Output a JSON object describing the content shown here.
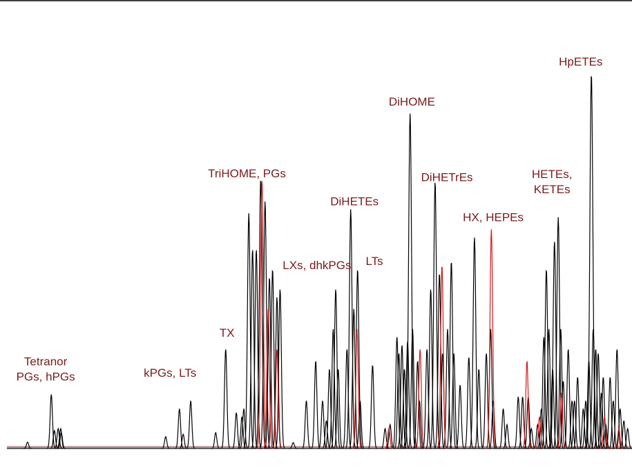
{
  "colors": {
    "label": "#7a1a1a",
    "trace_black": "#000000",
    "trace_red": "#d41a1a",
    "background": "#ffffff"
  },
  "chart_data": {
    "type": "line",
    "title": "",
    "xlabel": "",
    "ylabel": "",
    "xlim": [
      0,
      1000
    ],
    "ylim": [
      0,
      1
    ],
    "grid": false,
    "legend": "none",
    "annotations": [
      {
        "lines": [
          "Tetranor",
          "PGs, hPGs"
        ],
        "x": 62,
        "y": 0.17
      },
      {
        "lines": [
          "kPGs, LTs"
        ],
        "x": 261,
        "y": 0.18
      },
      {
        "lines": [
          "TX"
        ],
        "x": 352,
        "y": 0.28
      },
      {
        "lines": [
          "TriHOME, PGs"
        ],
        "x": 384,
        "y": 0.68
      },
      {
        "lines": [
          "LXs, dhkPGs"
        ],
        "x": 496,
        "y": 0.45
      },
      {
        "lines": [
          "LTs"
        ],
        "x": 588,
        "y": 0.46
      },
      {
        "lines": [
          "DiHETEs"
        ],
        "x": 556,
        "y": 0.61
      },
      {
        "lines": [
          "DiHOME"
        ],
        "x": 648,
        "y": 0.86
      },
      {
        "lines": [
          "DiHETrEs"
        ],
        "x": 704,
        "y": 0.67
      },
      {
        "lines": [
          "HX, HEPEs"
        ],
        "x": 778,
        "y": 0.57
      },
      {
        "lines": [
          "HETEs,",
          "KETEs"
        ],
        "x": 872,
        "y": 0.64
      },
      {
        "lines": [
          "HpETEs"
        ],
        "x": 918,
        "y": 0.96
      }
    ],
    "series": [
      {
        "color": "black",
        "peaks": [
          [
            33,
            0.016
          ],
          [
            71,
            0.136
          ],
          [
            76,
            0.045
          ],
          [
            82,
            0.05
          ],
          [
            86,
            0.05
          ],
          [
            87,
            0.04
          ],
          [
            254,
            0.03
          ],
          [
            276,
            0.1
          ],
          [
            282,
            0.036
          ],
          [
            294,
            0.12
          ],
          [
            334,
            0.04
          ],
          [
            350,
            0.25
          ],
          [
            367,
            0.09
          ],
          [
            376,
            0.08
          ],
          [
            379,
            0.1
          ],
          [
            387,
            0.59
          ],
          [
            393,
            0.5
          ],
          [
            399,
            0.5
          ],
          [
            406,
            0.675
          ],
          [
            413,
            0.62
          ],
          [
            420,
            0.43
          ],
          [
            425,
            0.45
          ],
          [
            432,
            0.38
          ],
          [
            437,
            0.4
          ],
          [
            458,
            0.015
          ],
          [
            479,
            0.12
          ],
          [
            494,
            0.22
          ],
          [
            505,
            0.12
          ],
          [
            511,
            0.07
          ],
          [
            516,
            0.2
          ],
          [
            522,
            0.3
          ],
          [
            526,
            0.4
          ],
          [
            530,
            0.2
          ],
          [
            544,
            0.25
          ],
          [
            550,
            0.6
          ],
          [
            555,
            0.35
          ],
          [
            561,
            0.45
          ],
          [
            565,
            0.12
          ],
          [
            585,
            0.21
          ],
          [
            605,
            0.05
          ],
          [
            613,
            0.06
          ],
          [
            624,
            0.28
          ],
          [
            627,
            0.24
          ],
          [
            632,
            0.26
          ],
          [
            636,
            0.2
          ],
          [
            641,
            0.27
          ],
          [
            645,
            0.84
          ],
          [
            649,
            0.3
          ],
          [
            657,
            0.22
          ],
          [
            660,
            0.12
          ],
          [
            672,
            0.25
          ],
          [
            678,
            0.4
          ],
          [
            685,
            0.67
          ],
          [
            692,
            0.44
          ],
          [
            697,
            0.24
          ],
          [
            705,
            0.3
          ],
          [
            711,
            0.47
          ],
          [
            715,
            0.24
          ],
          [
            725,
            0.16
          ],
          [
            739,
            0.23
          ],
          [
            748,
            0.53
          ],
          [
            755,
            0.2
          ],
          [
            767,
            0.24
          ],
          [
            774,
            0.3
          ],
          [
            778,
            0.12
          ],
          [
            794,
            0.1
          ],
          [
            800,
            0.06
          ],
          [
            818,
            0.13
          ],
          [
            825,
            0.13
          ],
          [
            834,
            0.13
          ],
          [
            839,
            0.05
          ],
          [
            849,
            0.06
          ],
          [
            855,
            0.1
          ],
          [
            859,
            0.28
          ],
          [
            863,
            0.45
          ],
          [
            867,
            0.3
          ],
          [
            873,
            0.2
          ],
          [
            876,
            0.52
          ],
          [
            882,
            0.58
          ],
          [
            886,
            0.3
          ],
          [
            890,
            0.17
          ],
          [
            898,
            0.25
          ],
          [
            904,
            0.12
          ],
          [
            908,
            0.12
          ],
          [
            913,
            0.18
          ],
          [
            922,
            0.1
          ],
          [
            926,
            0.12
          ],
          [
            931,
            0.22
          ],
          [
            935,
            0.94
          ],
          [
            938,
            0.3
          ],
          [
            942,
            0.25
          ],
          [
            946,
            0.24
          ],
          [
            951,
            0.14
          ],
          [
            954,
            0.18
          ],
          [
            958,
            0.06
          ],
          [
            965,
            0.18
          ],
          [
            970,
            0.12
          ],
          [
            976,
            0.25
          ],
          [
            981,
            0.1
          ],
          [
            987,
            0.07
          ],
          [
            993,
            0.05
          ]
        ]
      },
      {
        "color": "red",
        "peaks": [
          [
            408,
            0.675
          ],
          [
            418,
            0.35
          ],
          [
            432,
            0.25
          ],
          [
            560,
            0.3
          ],
          [
            611,
            0.05
          ],
          [
            661,
            0.25
          ],
          [
            696,
            0.46
          ],
          [
            775,
            0.55
          ],
          [
            832,
            0.22
          ],
          [
            852,
            0.08
          ],
          [
            887,
            0.14
          ],
          [
            956,
            0.08
          ],
          [
            979,
            0.05
          ]
        ]
      }
    ]
  }
}
